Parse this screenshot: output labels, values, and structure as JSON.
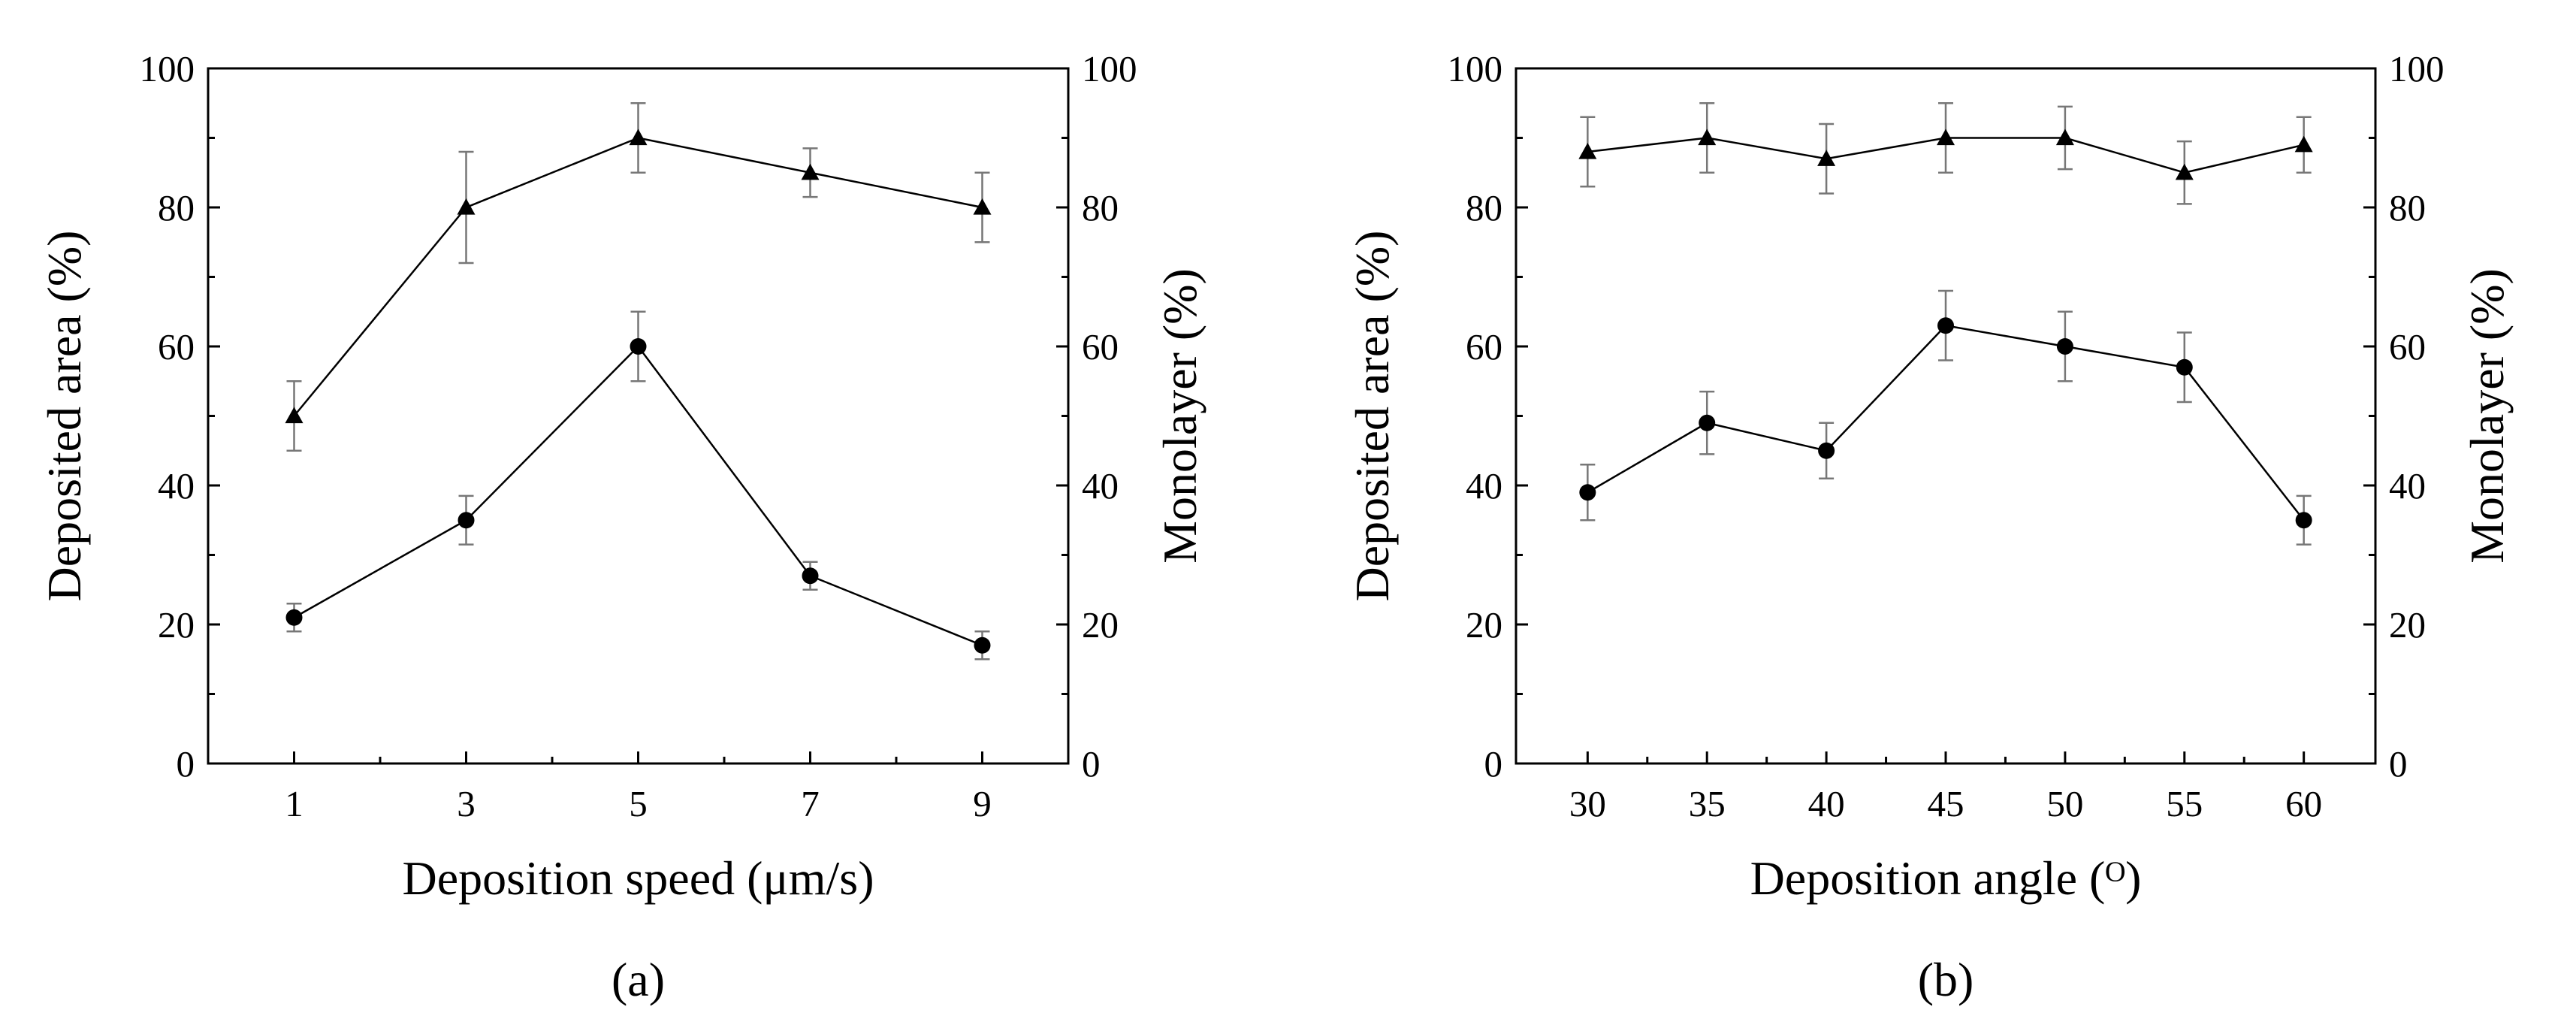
{
  "chart_data": [
    {
      "type": "line",
      "panel_label": "(a)",
      "xlabel": "Deposition speed (μm/s)",
      "ylabel": "Deposited area (%)",
      "ylabel_right": "Monolayer (%)",
      "xlim": [
        0,
        10
      ],
      "ylim": [
        0,
        100
      ],
      "xticks": [
        1,
        3,
        5,
        7,
        9
      ],
      "yticks": [
        0,
        20,
        40,
        60,
        80,
        100
      ],
      "x": [
        1,
        3,
        5,
        7,
        9
      ],
      "series": [
        {
          "name": "Monolayer",
          "marker": "triangle",
          "axis": "right",
          "values": [
            50,
            80,
            90,
            85,
            80
          ],
          "errors": [
            5,
            8,
            5,
            3.5,
            5
          ]
        },
        {
          "name": "Deposited area",
          "marker": "circle",
          "axis": "left",
          "values": [
            21,
            35,
            60,
            27,
            17
          ],
          "errors": [
            2,
            3.5,
            5,
            2,
            2
          ]
        }
      ]
    },
    {
      "type": "line",
      "panel_label": "(b)",
      "xlabel": "Deposition angle (ᴼ)",
      "ylabel": "Deposited area (%)",
      "ylabel_right": "Monolayer (%)",
      "xlim": [
        27,
        63
      ],
      "ylim": [
        0,
        100
      ],
      "xticks": [
        30,
        35,
        40,
        45,
        50,
        55,
        60
      ],
      "yticks": [
        0,
        20,
        40,
        60,
        80,
        100
      ],
      "x": [
        30,
        35,
        40,
        45,
        50,
        55,
        60
      ],
      "series": [
        {
          "name": "Monolayer",
          "marker": "triangle",
          "axis": "right",
          "values": [
            88,
            90,
            87,
            90,
            90,
            85,
            89
          ],
          "errors": [
            5,
            5,
            5,
            5,
            4.5,
            4.5,
            4
          ]
        },
        {
          "name": "Deposited area",
          "marker": "circle",
          "axis": "left",
          "values": [
            39,
            49,
            45,
            63,
            60,
            57,
            35
          ],
          "errors": [
            4,
            4.5,
            4,
            5,
            5,
            5,
            3.5
          ]
        }
      ]
    }
  ]
}
